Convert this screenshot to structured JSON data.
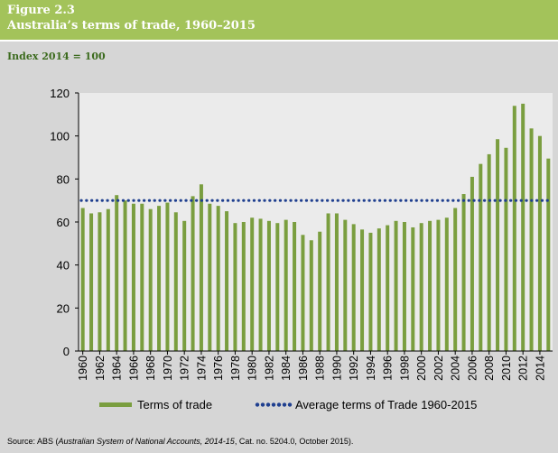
{
  "figure": {
    "label": "Figure 2.3",
    "title": "Australia’s terms of trade, 1960–2015",
    "subtitle": "Index 2014 = 100"
  },
  "source": {
    "prefix": "Source: ABS (",
    "italic": "Australian System of National Accounts, 2014-15",
    "suffix": ", Cat. no. 5204.0, October 2015)."
  },
  "colors": {
    "header": "#a3c35a",
    "bar": "#7a9e3f",
    "average_line": "#1f3f8f",
    "plot_background": "#ebebeb"
  },
  "chart_data": {
    "type": "bar",
    "title": "Australia’s terms of trade, 1960–2015",
    "ylabel": "Index 2014 = 100",
    "ylim": [
      0,
      120
    ],
    "yticks": [
      0,
      20,
      40,
      60,
      80,
      100,
      120
    ],
    "grid": false,
    "x": [
      1960,
      1961,
      1962,
      1963,
      1964,
      1965,
      1966,
      1967,
      1968,
      1969,
      1970,
      1971,
      1972,
      1973,
      1974,
      1975,
      1976,
      1977,
      1978,
      1979,
      1980,
      1981,
      1982,
      1983,
      1984,
      1985,
      1986,
      1987,
      1988,
      1989,
      1990,
      1991,
      1992,
      1993,
      1994,
      1995,
      1996,
      1997,
      1998,
      1999,
      2000,
      2001,
      2002,
      2003,
      2004,
      2005,
      2006,
      2007,
      2008,
      2009,
      2010,
      2011,
      2012,
      2013,
      2014,
      2015
    ],
    "x_tick_labels": [
      "1960",
      "1962",
      "1964",
      "1966",
      "1968",
      "1970",
      "1972",
      "1974",
      "1976",
      "1978",
      "1980",
      "1982",
      "1984",
      "1986",
      "1988",
      "1990",
      "1992",
      "1994",
      "1996",
      "1998",
      "2000",
      "2002",
      "2004",
      "2006",
      "2008",
      "2010",
      "2012",
      "2014"
    ],
    "series": [
      {
        "name": "Terms of trade",
        "type": "bar",
        "values": [
          66.5,
          64,
          64.5,
          66,
          72.5,
          70,
          68.5,
          68.5,
          66,
          67.5,
          69,
          64.5,
          60.5,
          72,
          77.5,
          68.5,
          67.5,
          65,
          59.5,
          60,
          62,
          61.5,
          60.5,
          59.5,
          61,
          60,
          54,
          51.5,
          55.5,
          64,
          64,
          61,
          59,
          56.5,
          55,
          57,
          58.5,
          60.5,
          60,
          57.5,
          59.5,
          60.5,
          61,
          62,
          66.5,
          73,
          81,
          87,
          91.5,
          98.5,
          94.5,
          114,
          115,
          103.5,
          100,
          89.5
        ]
      },
      {
        "name": "Average terms of Trade 1960-2015",
        "type": "line",
        "style": "dotted",
        "value": 70
      }
    ],
    "legend_position": "bottom"
  }
}
